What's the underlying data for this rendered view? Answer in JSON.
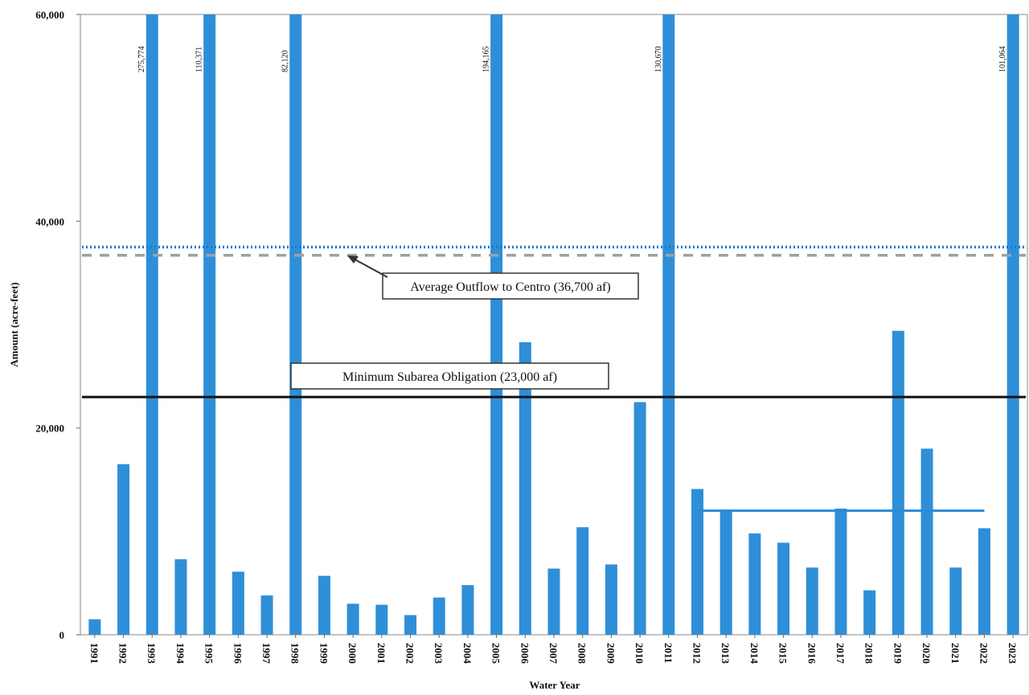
{
  "chart_data": {
    "type": "bar",
    "y_label": "Amount (acre-feet)",
    "x_label": "Water Year",
    "categories": [
      "1991",
      "1992",
      "1993",
      "1994",
      "1995",
      "1996",
      "1997",
      "1998",
      "1999",
      "2000",
      "2001",
      "2002",
      "2003",
      "2004",
      "2005",
      "2006",
      "2007",
      "2008",
      "2009",
      "2010",
      "2011",
      "2012",
      "2013",
      "2014",
      "2015",
      "2016",
      "2017",
      "2018",
      "2019",
      "2020",
      "2021",
      "2022",
      "2023"
    ],
    "values": [
      1500,
      16500,
      275774,
      7300,
      110371,
      6100,
      3800,
      82120,
      5700,
      3000,
      2900,
      1900,
      3600,
      4800,
      194165,
      28300,
      6400,
      10400,
      6800,
      22500,
      130670,
      14100,
      12000,
      9800,
      8900,
      6500,
      12200,
      4300,
      29400,
      18000,
      6500,
      10300,
      101064
    ],
    "value_labels": [
      null,
      null,
      "275,774",
      null,
      "110,371",
      null,
      null,
      "82,120",
      null,
      null,
      null,
      null,
      null,
      null,
      "194,165",
      null,
      null,
      null,
      null,
      null,
      "130,670",
      null,
      null,
      null,
      null,
      null,
      null,
      null,
      null,
      null,
      null,
      null,
      "101,064"
    ],
    "color": "#2e8fd8",
    "ylim": [
      0,
      60000
    ],
    "yticks": [
      0,
      {
        "value": 20000,
        "label": "20,000"
      },
      {
        "value": 40000,
        "label": "40,000"
      },
      {
        "value": 60000,
        "label": "60,000"
      }
    ],
    "reference_lines": [
      {
        "value": 37500,
        "color": "#1f78d1",
        "style": "dotted"
      },
      {
        "value": 36700,
        "color": "#a0a0a0",
        "style": "dashed",
        "label": "Average Outflow to Centro (36,700 af)"
      },
      {
        "value": 23000,
        "color": "#111111",
        "style": "solid",
        "label": "Minimum Subarea Obligation (23,000 af)"
      },
      {
        "value": 12000,
        "color": "#2a8ad6",
        "style": "solid",
        "start": "2012",
        "end": "2022"
      }
    ]
  }
}
